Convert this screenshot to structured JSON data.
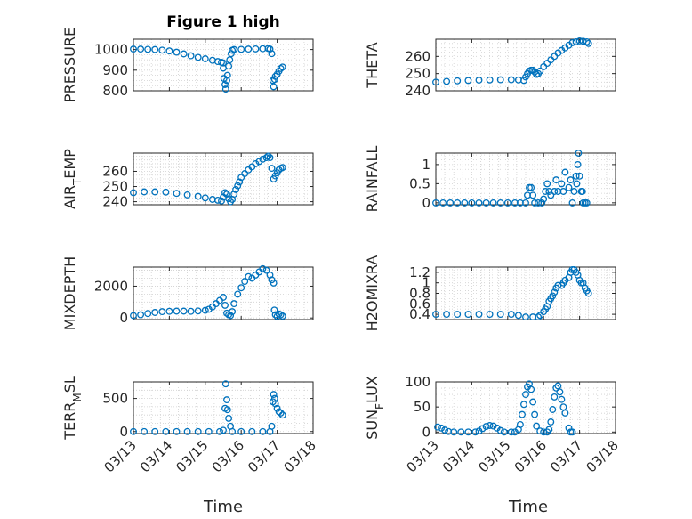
{
  "title": "Figure 1 high",
  "colors": {
    "marker": "#0072BD",
    "axes": "#262626",
    "grid": "#d0d0d0"
  },
  "x_axis": {
    "label": "Time",
    "ticks": [
      "03/13",
      "03/14",
      "03/15",
      "03/16",
      "03/17",
      "03/18"
    ],
    "range_days": [
      0,
      5
    ]
  },
  "chart_data": [
    {
      "type": "scatter",
      "name": "pressure",
      "ylabel": "PRESSURE",
      "ylim": [
        800,
        1050
      ],
      "yticks": [
        800,
        900,
        1000
      ],
      "grid": "on",
      "points": [
        [
          0.0,
          1002
        ],
        [
          0.2,
          1002
        ],
        [
          0.4,
          1001
        ],
        [
          0.6,
          1000
        ],
        [
          0.8,
          997
        ],
        [
          1.0,
          993
        ],
        [
          1.2,
          987
        ],
        [
          1.4,
          979
        ],
        [
          1.6,
          970
        ],
        [
          1.8,
          962
        ],
        [
          2.0,
          955
        ],
        [
          2.2,
          948
        ],
        [
          2.35,
          942
        ],
        [
          2.45,
          938
        ],
        [
          2.5,
          935
        ],
        [
          2.5,
          910
        ],
        [
          2.52,
          860
        ],
        [
          2.55,
          830
        ],
        [
          2.57,
          808
        ],
        [
          2.6,
          850
        ],
        [
          2.62,
          875
        ],
        [
          2.65,
          920
        ],
        [
          2.68,
          950
        ],
        [
          2.72,
          980
        ],
        [
          2.75,
          996
        ],
        [
          2.8,
          1000
        ],
        [
          3.0,
          1001
        ],
        [
          3.2,
          1002
        ],
        [
          3.4,
          1003
        ],
        [
          3.6,
          1004
        ],
        [
          3.75,
          1005
        ],
        [
          3.8,
          1002
        ],
        [
          3.85,
          980
        ],
        [
          3.88,
          850
        ],
        [
          3.9,
          820
        ],
        [
          3.93,
          855
        ],
        [
          3.95,
          870
        ],
        [
          4.0,
          880
        ],
        [
          4.05,
          895
        ],
        [
          4.1,
          908
        ],
        [
          4.15,
          915
        ]
      ]
    },
    {
      "type": "scatter",
      "name": "theta",
      "ylabel": "THETA",
      "ylim": [
        240,
        270
      ],
      "yticks": [
        240,
        250,
        260
      ],
      "grid": "on",
      "points": [
        [
          0.0,
          245
        ],
        [
          0.3,
          245.5
        ],
        [
          0.6,
          245.8
        ],
        [
          0.9,
          246
        ],
        [
          1.2,
          246.2
        ],
        [
          1.5,
          246.3
        ],
        [
          1.8,
          246.4
        ],
        [
          2.1,
          246.4
        ],
        [
          2.3,
          246.3
        ],
        [
          2.45,
          246
        ],
        [
          2.5,
          248
        ],
        [
          2.55,
          250
        ],
        [
          2.6,
          251.5
        ],
        [
          2.65,
          252
        ],
        [
          2.7,
          252
        ],
        [
          2.75,
          251
        ],
        [
          2.8,
          249.5
        ],
        [
          2.85,
          250
        ],
        [
          2.9,
          251.5
        ],
        [
          3.0,
          254
        ],
        [
          3.1,
          256
        ],
        [
          3.2,
          258
        ],
        [
          3.3,
          260
        ],
        [
          3.4,
          262
        ],
        [
          3.5,
          263.5
        ],
        [
          3.6,
          265
        ],
        [
          3.7,
          266.5
        ],
        [
          3.8,
          268
        ],
        [
          3.9,
          268.5
        ],
        [
          4.0,
          269
        ],
        [
          4.1,
          268.8
        ],
        [
          4.2,
          268.5
        ],
        [
          4.25,
          267.5
        ]
      ]
    },
    {
      "type": "scatter",
      "name": "air_temp",
      "ylabel": "AIR_TEMP",
      "ylim": [
        238,
        272
      ],
      "yticks": [
        240,
        250,
        260
      ],
      "grid": "on",
      "points": [
        [
          0.0,
          246
        ],
        [
          0.3,
          246.5
        ],
        [
          0.6,
          246.5
        ],
        [
          0.9,
          246.3
        ],
        [
          1.2,
          245.5
        ],
        [
          1.5,
          244.5
        ],
        [
          1.8,
          243.5
        ],
        [
          2.0,
          242.5
        ],
        [
          2.2,
          241.5
        ],
        [
          2.35,
          241
        ],
        [
          2.45,
          240.5
        ],
        [
          2.5,
          243
        ],
        [
          2.55,
          246
        ],
        [
          2.6,
          245
        ],
        [
          2.65,
          242
        ],
        [
          2.7,
          240
        ],
        [
          2.75,
          241.5
        ],
        [
          2.8,
          245
        ],
        [
          2.85,
          248
        ],
        [
          2.9,
          250.5
        ],
        [
          2.95,
          253
        ],
        [
          3.0,
          256
        ],
        [
          3.1,
          258.5
        ],
        [
          3.2,
          261
        ],
        [
          3.3,
          263
        ],
        [
          3.4,
          265
        ],
        [
          3.5,
          266.5
        ],
        [
          3.6,
          268
        ],
        [
          3.7,
          269
        ],
        [
          3.75,
          270
        ],
        [
          3.8,
          269
        ],
        [
          3.85,
          262
        ],
        [
          3.9,
          255
        ],
        [
          3.95,
          257
        ],
        [
          4.0,
          259
        ],
        [
          4.05,
          261
        ],
        [
          4.1,
          262
        ],
        [
          4.15,
          262.5
        ]
      ]
    },
    {
      "type": "scatter",
      "name": "rainfall",
      "ylabel": "RAINFALL",
      "ylim": [
        -0.05,
        1.3
      ],
      "yticks": [
        0,
        0.5,
        1
      ],
      "grid": "on",
      "points": [
        [
          0.0,
          0
        ],
        [
          0.2,
          0
        ],
        [
          0.4,
          0
        ],
        [
          0.6,
          0
        ],
        [
          0.8,
          0
        ],
        [
          1.0,
          0
        ],
        [
          1.2,
          0
        ],
        [
          1.4,
          0
        ],
        [
          1.6,
          0
        ],
        [
          1.8,
          0
        ],
        [
          2.0,
          0
        ],
        [
          2.2,
          0
        ],
        [
          2.35,
          0
        ],
        [
          2.5,
          0
        ],
        [
          2.55,
          0.2
        ],
        [
          2.6,
          0.4
        ],
        [
          2.65,
          0.4
        ],
        [
          2.7,
          0.2
        ],
        [
          2.75,
          0
        ],
        [
          2.85,
          0
        ],
        [
          2.95,
          0
        ],
        [
          3.0,
          0.1
        ],
        [
          3.05,
          0.3
        ],
        [
          3.1,
          0.5
        ],
        [
          3.15,
          0.3
        ],
        [
          3.2,
          0.2
        ],
        [
          3.3,
          0.3
        ],
        [
          3.35,
          0.6
        ],
        [
          3.4,
          0.3
        ],
        [
          3.5,
          0.5
        ],
        [
          3.55,
          0.3
        ],
        [
          3.6,
          0.8
        ],
        [
          3.7,
          0.4
        ],
        [
          3.75,
          0.6
        ],
        [
          3.8,
          0
        ],
        [
          3.85,
          0.3
        ],
        [
          3.9,
          0.7
        ],
        [
          3.92,
          0.5
        ],
        [
          3.95,
          1.0
        ],
        [
          3.97,
          1.3
        ],
        [
          4.0,
          0.7
        ],
        [
          4.05,
          0.3
        ],
        [
          4.08,
          0.3
        ],
        [
          4.1,
          0
        ],
        [
          4.15,
          0
        ],
        [
          4.2,
          0
        ]
      ]
    },
    {
      "type": "scatter",
      "name": "mixdepth",
      "ylabel": "MIXDEPTH",
      "ylim": [
        -100,
        3200
      ],
      "yticks": [
        0,
        2000
      ],
      "grid": "on",
      "points": [
        [
          0.0,
          150
        ],
        [
          0.2,
          200
        ],
        [
          0.4,
          280
        ],
        [
          0.6,
          350
        ],
        [
          0.8,
          400
        ],
        [
          1.0,
          420
        ],
        [
          1.2,
          430
        ],
        [
          1.4,
          430
        ],
        [
          1.6,
          420
        ],
        [
          1.8,
          440
        ],
        [
          2.0,
          480
        ],
        [
          2.1,
          550
        ],
        [
          2.2,
          700
        ],
        [
          2.3,
          900
        ],
        [
          2.4,
          1100
        ],
        [
          2.5,
          1300
        ],
        [
          2.55,
          800
        ],
        [
          2.6,
          300
        ],
        [
          2.65,
          200
        ],
        [
          2.7,
          150
        ],
        [
          2.75,
          400
        ],
        [
          2.8,
          900
        ],
        [
          2.9,
          1500
        ],
        [
          3.0,
          1900
        ],
        [
          3.1,
          2300
        ],
        [
          3.2,
          2600
        ],
        [
          3.3,
          2500
        ],
        [
          3.4,
          2700
        ],
        [
          3.5,
          2900
        ],
        [
          3.6,
          3100
        ],
        [
          3.7,
          3000
        ],
        [
          3.8,
          2700
        ],
        [
          3.85,
          2400
        ],
        [
          3.9,
          2200
        ],
        [
          3.92,
          500
        ],
        [
          3.95,
          200
        ],
        [
          4.0,
          100
        ],
        [
          4.05,
          250
        ],
        [
          4.1,
          200
        ],
        [
          4.15,
          120
        ]
      ]
    },
    {
      "type": "scatter",
      "name": "h2omixra",
      "ylabel": "H2OMIXRA",
      "ylim": [
        0.3,
        1.3
      ],
      "yticks": [
        0.4,
        0.6,
        0.8,
        1,
        1.2
      ],
      "grid": "on",
      "points": [
        [
          0.0,
          0.4
        ],
        [
          0.3,
          0.4
        ],
        [
          0.6,
          0.4
        ],
        [
          0.9,
          0.4
        ],
        [
          1.2,
          0.4
        ],
        [
          1.5,
          0.4
        ],
        [
          1.8,
          0.4
        ],
        [
          2.1,
          0.4
        ],
        [
          2.3,
          0.38
        ],
        [
          2.5,
          0.35
        ],
        [
          2.7,
          0.35
        ],
        [
          2.85,
          0.35
        ],
        [
          2.9,
          0.38
        ],
        [
          3.0,
          0.45
        ],
        [
          3.05,
          0.5
        ],
        [
          3.1,
          0.55
        ],
        [
          3.15,
          0.65
        ],
        [
          3.2,
          0.7
        ],
        [
          3.25,
          0.75
        ],
        [
          3.3,
          0.82
        ],
        [
          3.35,
          0.9
        ],
        [
          3.4,
          0.95
        ],
        [
          3.5,
          0.95
        ],
        [
          3.55,
          1.0
        ],
        [
          3.6,
          1.05
        ],
        [
          3.7,
          1.1
        ],
        [
          3.75,
          1.2
        ],
        [
          3.8,
          1.25
        ],
        [
          3.85,
          1.25
        ],
        [
          3.9,
          1.2
        ],
        [
          3.95,
          1.15
        ],
        [
          4.0,
          1.05
        ],
        [
          4.05,
          1.0
        ],
        [
          4.1,
          1.0
        ],
        [
          4.15,
          0.9
        ],
        [
          4.2,
          0.85
        ],
        [
          4.25,
          0.8
        ]
      ]
    },
    {
      "type": "scatter",
      "name": "terr_msl",
      "ylabel": "TERR_MSL",
      "ylim": [
        -30,
        750
      ],
      "yticks": [
        0,
        500
      ],
      "grid": "on",
      "points": [
        [
          0.0,
          0
        ],
        [
          0.3,
          0
        ],
        [
          0.6,
          0
        ],
        [
          0.9,
          0
        ],
        [
          1.2,
          0
        ],
        [
          1.5,
          0
        ],
        [
          1.8,
          0
        ],
        [
          2.1,
          0
        ],
        [
          2.4,
          0
        ],
        [
          2.5,
          20
        ],
        [
          2.55,
          350
        ],
        [
          2.57,
          720
        ],
        [
          2.6,
          480
        ],
        [
          2.62,
          330
        ],
        [
          2.65,
          200
        ],
        [
          2.7,
          80
        ],
        [
          2.75,
          0
        ],
        [
          3.0,
          0
        ],
        [
          3.3,
          0
        ],
        [
          3.6,
          0
        ],
        [
          3.8,
          0
        ],
        [
          3.85,
          80
        ],
        [
          3.88,
          450
        ],
        [
          3.9,
          560
        ],
        [
          3.93,
          500
        ],
        [
          3.95,
          420
        ],
        [
          4.0,
          350
        ],
        [
          4.05,
          300
        ],
        [
          4.1,
          280
        ],
        [
          4.15,
          250
        ]
      ]
    },
    {
      "type": "scatter",
      "name": "sun_flux",
      "ylabel": "SUN_FLUX",
      "ylim": [
        -3,
        100
      ],
      "yticks": [
        0,
        50,
        100
      ],
      "grid": "on",
      "points": [
        [
          0.05,
          10
        ],
        [
          0.15,
          8
        ],
        [
          0.25,
          4
        ],
        [
          0.35,
          1
        ],
        [
          0.5,
          0
        ],
        [
          0.7,
          0
        ],
        [
          0.9,
          0
        ],
        [
          1.1,
          0
        ],
        [
          1.2,
          2
        ],
        [
          1.3,
          7
        ],
        [
          1.4,
          11
        ],
        [
          1.5,
          13
        ],
        [
          1.6,
          12
        ],
        [
          1.7,
          8
        ],
        [
          1.8,
          3
        ],
        [
          1.9,
          0
        ],
        [
          2.1,
          0
        ],
        [
          2.2,
          0
        ],
        [
          2.3,
          5
        ],
        [
          2.35,
          15
        ],
        [
          2.4,
          35
        ],
        [
          2.45,
          55
        ],
        [
          2.5,
          75
        ],
        [
          2.55,
          90
        ],
        [
          2.6,
          96
        ],
        [
          2.65,
          85
        ],
        [
          2.7,
          60
        ],
        [
          2.75,
          35
        ],
        [
          2.8,
          12
        ],
        [
          2.9,
          2
        ],
        [
          3.0,
          0
        ],
        [
          3.1,
          0
        ],
        [
          3.15,
          5
        ],
        [
          3.2,
          20
        ],
        [
          3.25,
          45
        ],
        [
          3.3,
          70
        ],
        [
          3.35,
          88
        ],
        [
          3.4,
          92
        ],
        [
          3.45,
          80
        ],
        [
          3.5,
          65
        ],
        [
          3.55,
          50
        ],
        [
          3.6,
          38
        ],
        [
          3.7,
          8
        ],
        [
          3.75,
          0
        ],
        [
          3.8,
          0
        ]
      ]
    }
  ]
}
